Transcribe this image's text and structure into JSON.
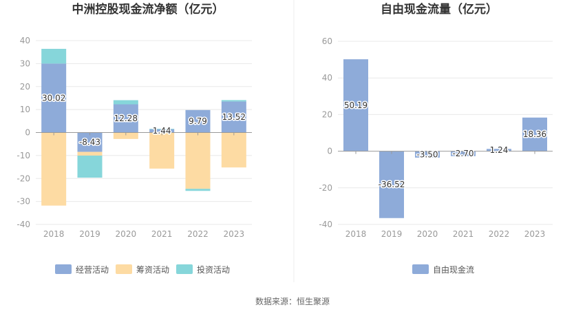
{
  "source_text": "数据来源：恒生聚源",
  "colors": {
    "operating": "#8eabd9",
    "financing": "#fddba3",
    "investing": "#86d6da",
    "fcf": "#8eabd9",
    "grid": "#e8e8e8",
    "axis": "#999999"
  },
  "chart_data": [
    {
      "type": "bar",
      "stacked": true,
      "title": "中洲控股现金流净额（亿元）",
      "categories": [
        "2018",
        "2019",
        "2020",
        "2021",
        "2022",
        "2023"
      ],
      "ylim": [
        -40,
        40
      ],
      "yticks": [
        40,
        30,
        20,
        10,
        0,
        -10,
        -20,
        -30,
        -40
      ],
      "grid": true,
      "legend_position": "bottom",
      "series": [
        {
          "name": "经营活动",
          "key": "operating",
          "values": [
            30.02,
            -8.43,
            12.28,
            1.44,
            9.79,
            13.52
          ],
          "labels": [
            "30.02",
            "-8.43",
            "12.28",
            "1.44",
            "9.79",
            "13.52"
          ]
        },
        {
          "name": "筹资活动",
          "key": "financing",
          "values": [
            -31.8,
            -1.6,
            -2.8,
            -15.7,
            -24.5,
            -15.2
          ]
        },
        {
          "name": "投资活动",
          "key": "investing",
          "values": [
            6.4,
            -9.6,
            1.8,
            0.2,
            -0.9,
            0.6
          ]
        }
      ]
    },
    {
      "type": "bar",
      "title": "自由现金流量（亿元）",
      "categories": [
        "2018",
        "2019",
        "2020",
        "2021",
        "2022",
        "2023"
      ],
      "ylim": [
        -40,
        60
      ],
      "yticks": [
        60,
        40,
        20,
        0,
        -20,
        -40
      ],
      "grid": true,
      "legend_position": "bottom",
      "series": [
        {
          "name": "自由现金流",
          "key": "fcf",
          "values": [
            50.19,
            -36.52,
            -3.5,
            -2.7,
            1.24,
            18.36
          ],
          "labels": [
            "50.19",
            "-36.52",
            "-3.50",
            "-2.70",
            "1.24",
            "18.36"
          ]
        }
      ]
    }
  ]
}
